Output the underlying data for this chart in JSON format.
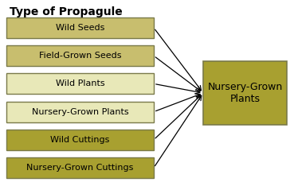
{
  "title": "Type of Propagule",
  "left_boxes": [
    {
      "label": "Wild Seeds",
      "color": "#c8be6e",
      "border": "#7a7a4a"
    },
    {
      "label": "Field-Grown Seeds",
      "color": "#c8be6e",
      "border": "#7a7a4a"
    },
    {
      "label": "Wild Plants",
      "color": "#e8e8b8",
      "border": "#7a7a4a"
    },
    {
      "label": "Nursery-Grown Plants",
      "color": "#e8e8b8",
      "border": "#7a7a4a"
    },
    {
      "label": "Wild Cuttings",
      "color": "#a8a030",
      "border": "#7a7a4a"
    },
    {
      "label": "Nursery-Grown Cuttings",
      "color": "#a8a030",
      "border": "#7a7a4a"
    }
  ],
  "right_box": {
    "label": "Nursery-Grown\nPlants",
    "color": "#a8a030",
    "border": "#7a7a4a"
  },
  "bg_color": "#ffffff",
  "title_fontsize": 10,
  "label_fontsize": 8
}
